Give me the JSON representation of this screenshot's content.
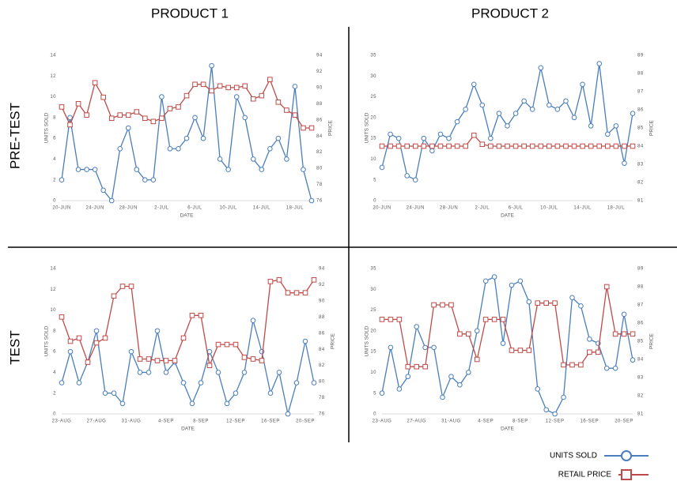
{
  "columns": [
    "PRODUCT 1",
    "PRODUCT 2"
  ],
  "rows": [
    "PRE-TEST",
    "TEST"
  ],
  "chart_data": [
    {
      "type": "line",
      "x_label": "DATE",
      "y_label": "UNITS SOLD",
      "y2_label": "PRICE",
      "categories": [
        "20-JUN",
        null,
        null,
        null,
        "24-JUN",
        null,
        null,
        null,
        "28-JUN",
        null,
        null,
        null,
        "2-JUL",
        null,
        null,
        null,
        "6-JUL",
        null,
        null,
        null,
        "10-JUL",
        null,
        null,
        null,
        "14-JUL",
        null,
        null,
        null,
        "18-JUL",
        null,
        null
      ],
      "ylim": [
        0,
        14
      ],
      "yticks": [
        0,
        2,
        4,
        6,
        8,
        10,
        12,
        14
      ],
      "y2lim": [
        76,
        94
      ],
      "y2ticks": [
        76,
        78,
        80,
        82,
        84,
        86,
        88,
        90,
        92,
        94
      ],
      "series": [
        {
          "name": "UNITS SOLD",
          "color": "#4a7ebb",
          "marker": "circle",
          "values": [
            2,
            8,
            3,
            3,
            3,
            1,
            0,
            5,
            7,
            3,
            2,
            2,
            10,
            5,
            5,
            6,
            8,
            6,
            13,
            4,
            3,
            10,
            8,
            4,
            3,
            5,
            6,
            4,
            11,
            3,
            0
          ]
        },
        {
          "name": "RETAIL PRICE",
          "color": "#be4b48",
          "marker": "square",
          "axis": "y2",
          "values": [
            87.6,
            85.4,
            88,
            86.6,
            90.6,
            88.8,
            86.2,
            86.6,
            86.6,
            87,
            86.2,
            85.8,
            86.2,
            87.4,
            87.6,
            89,
            90.4,
            90.4,
            89.6,
            90.2,
            90,
            90,
            90.2,
            88.6,
            89,
            91,
            88.2,
            87.2,
            86.6,
            85,
            85
          ]
        }
      ]
    },
    {
      "type": "line",
      "x_label": "DATE",
      "y_label": "UNITS SOLD",
      "y2_label": "PRICE",
      "categories": [
        "20-JUN",
        null,
        null,
        null,
        "24-JUN",
        null,
        null,
        null,
        "28-JUN",
        null,
        null,
        null,
        "2-JUL",
        null,
        null,
        null,
        "6-JUL",
        null,
        null,
        null,
        "10-JUL",
        null,
        null,
        null,
        "14-JUL",
        null,
        null,
        null,
        "18-JUL",
        null,
        null
      ],
      "ylim": [
        0,
        35
      ],
      "yticks": [
        0,
        5,
        10,
        15,
        20,
        25,
        30,
        35
      ],
      "y2lim": [
        81,
        89
      ],
      "y2ticks": [
        81,
        82,
        83,
        84,
        85,
        86,
        87,
        88,
        89
      ],
      "series": [
        {
          "name": "UNITS SOLD",
          "color": "#4a7ebb",
          "marker": "circle",
          "values": [
            8,
            16,
            15,
            6,
            5,
            15,
            12,
            16,
            15,
            19,
            22,
            28,
            23,
            15,
            21,
            18,
            21,
            24,
            22,
            32,
            23,
            22,
            24,
            20,
            28,
            18,
            33,
            16,
            18,
            9,
            21
          ]
        },
        {
          "name": "RETAIL PRICE",
          "color": "#be4b48",
          "marker": "square",
          "axis": "y2",
          "values": [
            84,
            84,
            84,
            84,
            84,
            84,
            84,
            84,
            84,
            84,
            84,
            84.6,
            84.1,
            84,
            84,
            84,
            84,
            84,
            84,
            84,
            84,
            84,
            84,
            84,
            84,
            84,
            84,
            84,
            84,
            84,
            84
          ]
        }
      ]
    },
    {
      "type": "line",
      "x_label": "DATE",
      "y_label": "UNITS SOLD",
      "y2_label": "PRICE",
      "categories": [
        "23-AUG",
        null,
        null,
        null,
        "27-AUG",
        null,
        null,
        null,
        "31-AUG",
        null,
        null,
        null,
        "4-SEP",
        null,
        null,
        null,
        "8-SEP",
        null,
        null,
        null,
        "12-SEP",
        null,
        null,
        null,
        "16-SEP",
        null,
        null,
        null,
        "20-SEP",
        null
      ],
      "ylim": [
        0,
        14
      ],
      "yticks": [
        0,
        2,
        4,
        6,
        8,
        10,
        12,
        14
      ],
      "y2lim": [
        76,
        94
      ],
      "y2ticks": [
        76,
        78,
        80,
        82,
        84,
        86,
        88,
        90,
        92,
        94
      ],
      "series": [
        {
          "name": "UNITS SOLD",
          "color": "#4a7ebb",
          "marker": "circle",
          "values": [
            3,
            6,
            3,
            5,
            8,
            2,
            2,
            1,
            6,
            4,
            4,
            8,
            4,
            5,
            3,
            1,
            3,
            6,
            4,
            1,
            2,
            4,
            9,
            6,
            2,
            4,
            0,
            3,
            7,
            3
          ]
        },
        {
          "name": "RETAIL PRICE",
          "color": "#be4b48",
          "marker": "square",
          "axis": "y2",
          "values": [
            88,
            85,
            85.4,
            82.4,
            84.8,
            85.4,
            90.6,
            91.8,
            91.8,
            82.8,
            82.8,
            82.6,
            82.6,
            82.6,
            85.4,
            88.2,
            88.2,
            82,
            84.6,
            84.6,
            84.6,
            83,
            82.8,
            82.6,
            92.4,
            92.6,
            91,
            91,
            91,
            92.6
          ]
        }
      ]
    },
    {
      "type": "line",
      "x_label": "DATE",
      "y_label": "UNITS SOLD",
      "y2_label": "PRICE",
      "categories": [
        "23-AUG",
        null,
        null,
        null,
        "27-AUG",
        null,
        null,
        null,
        "31-AUG",
        null,
        null,
        null,
        "4-SEP",
        null,
        null,
        null,
        "8-SEP",
        null,
        null,
        null,
        "12-SEP",
        null,
        null,
        null,
        "16-SEP",
        null,
        null,
        null,
        "20-SEP",
        null
      ],
      "ylim": [
        0,
        35
      ],
      "yticks": [
        0,
        5,
        10,
        15,
        20,
        25,
        30,
        35
      ],
      "y2lim": [
        81,
        89
      ],
      "y2ticks": [
        81,
        82,
        83,
        84,
        85,
        86,
        87,
        88,
        89
      ],
      "series": [
        {
          "name": "UNITS SOLD",
          "color": "#4a7ebb",
          "marker": "circle",
          "values": [
            5,
            16,
            6,
            9,
            21,
            16,
            16,
            4,
            9,
            7,
            10,
            20,
            32,
            33,
            17,
            31,
            32,
            27,
            6,
            1,
            0,
            4,
            28,
            26,
            18,
            17,
            11,
            11,
            24,
            13
          ]
        },
        {
          "name": "RETAIL PRICE",
          "color": "#be4b48",
          "marker": "square",
          "axis": "y2",
          "values": [
            86.2,
            86.2,
            86.2,
            83.6,
            83.6,
            83.6,
            87,
            87,
            87,
            85.4,
            85.4,
            84,
            86.2,
            86.2,
            86.2,
            84.5,
            84.5,
            84.5,
            87.1,
            87.1,
            87.1,
            83.7,
            83.7,
            83.7,
            84.4,
            84.4,
            88,
            85.4,
            85.4,
            85.4
          ]
        }
      ]
    }
  ]
}
